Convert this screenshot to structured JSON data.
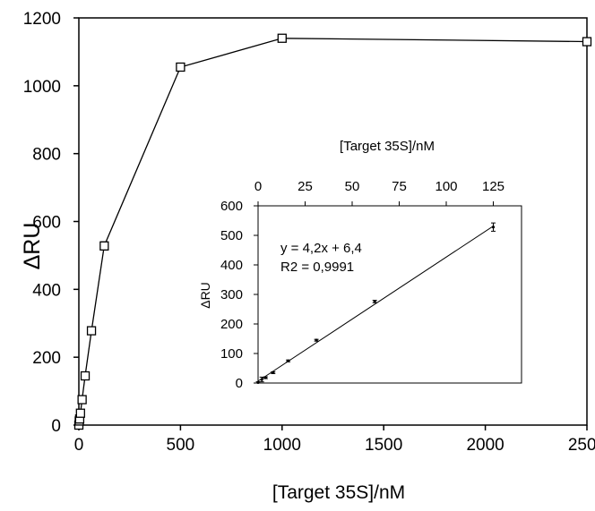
{
  "chart_data": [
    {
      "type": "line",
      "xlabel": "[Target 35S]/nM",
      "ylabel": "ΔRU",
      "xlim": [
        0,
        2500
      ],
      "ylim": [
        0,
        1200
      ],
      "xticks": [
        0,
        500,
        1000,
        1500,
        2000,
        2500
      ],
      "yticks": [
        0,
        200,
        400,
        600,
        800,
        1000,
        1200
      ],
      "grid": false,
      "marker": "open-square",
      "series": [
        {
          "x": [
            0,
            2,
            4,
            8,
            16,
            31,
            62,
            125,
            500,
            1000,
            2500
          ],
          "y": [
            0,
            12,
            18,
            35,
            75,
            145,
            278,
            528,
            1055,
            1140,
            1130
          ],
          "error": [
            3,
            4,
            4,
            5,
            5,
            6,
            8,
            12,
            8,
            6,
            4
          ]
        }
      ]
    },
    {
      "type": "line",
      "inset": true,
      "xlabel": "[Target 35S]/nM",
      "xlabel_position": "top",
      "ylabel": "ΔRU",
      "xlim": [
        0,
        140
      ],
      "ylim": [
        0,
        600
      ],
      "xticks": [
        0,
        25,
        50,
        75,
        100,
        125
      ],
      "yticks": [
        0,
        100,
        200,
        300,
        400,
        500,
        600
      ],
      "annotation_lines": [
        "y = 4,2x + 6,4",
        "R2 = 0,9991"
      ],
      "series": [
        {
          "x": [
            0,
            2,
            4,
            8,
            16,
            31,
            62,
            125
          ],
          "y": [
            2,
            12,
            18,
            35,
            75,
            145,
            276,
            528
          ],
          "error": [
            2,
            8,
            3,
            3,
            3,
            3,
            4,
            14
          ]
        }
      ],
      "fit": {
        "slope": 4.2,
        "intercept": 6.4
      }
    }
  ]
}
